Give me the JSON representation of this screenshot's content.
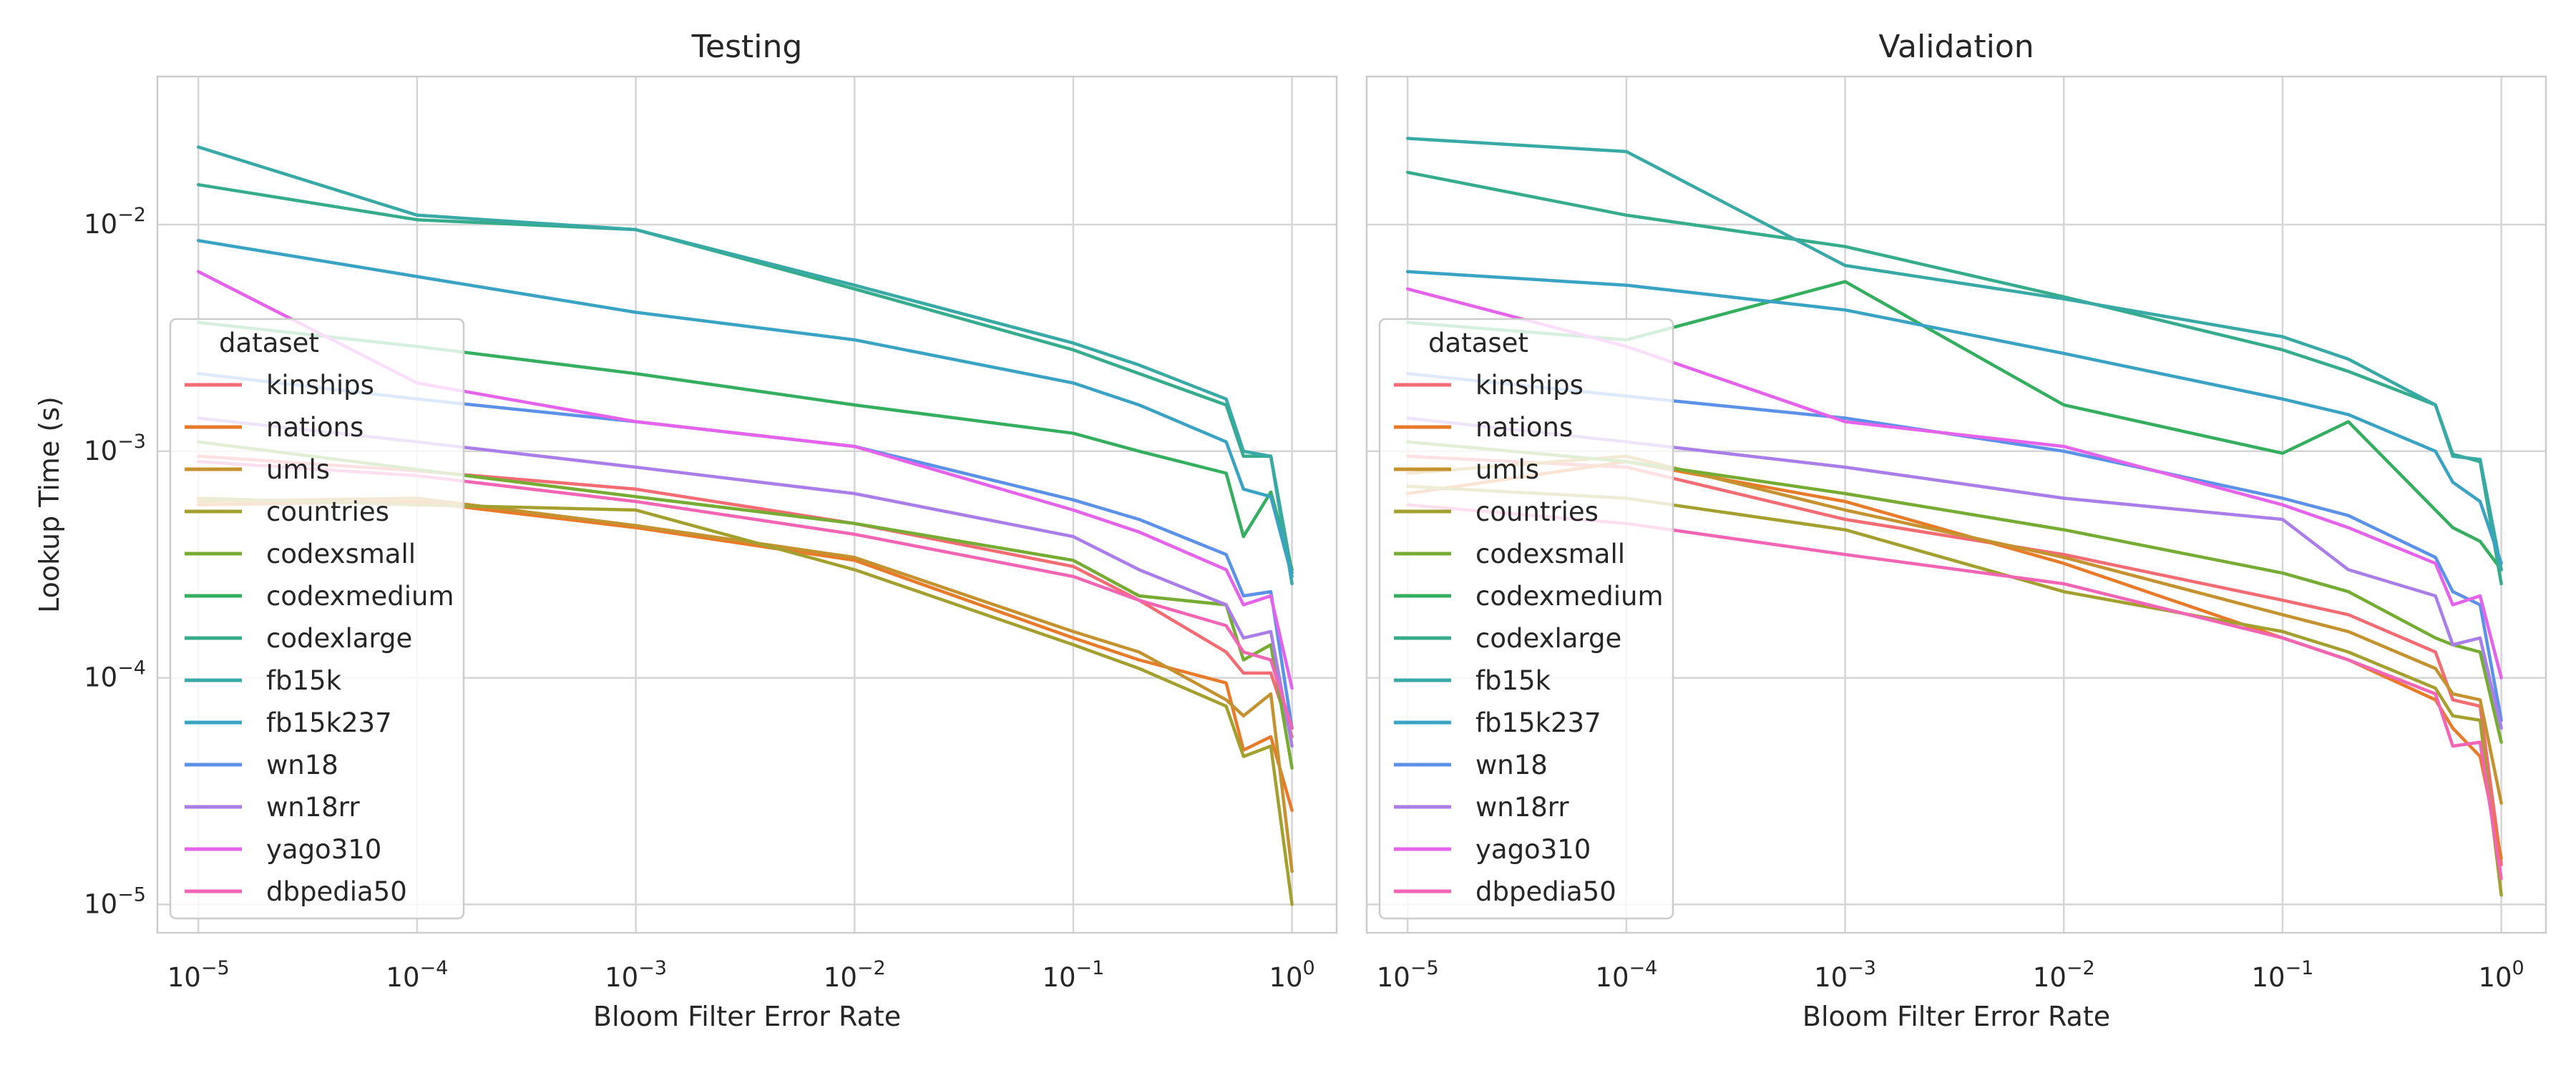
{
  "chart_data": [
    {
      "type": "line",
      "title": "Testing",
      "xlabel": "Bloom Filter Error Rate",
      "ylabel": "Lookup Time (s)",
      "xscale": "log",
      "yscale": "log",
      "xlim": [
        6.5e-06,
        1.6
      ],
      "ylim": [
        7.5e-06,
        0.045
      ],
      "x": [
        1e-05,
        0.0001,
        0.001,
        0.01,
        0.1,
        0.2,
        0.5,
        0.6,
        0.8,
        1
      ],
      "xticks": [
        1e-05,
        0.0001,
        0.001,
        0.01,
        0.1,
        1
      ],
      "xticklabels": [
        {
          "b": "10",
          "e": "−5"
        },
        {
          "b": "10",
          "e": "−4"
        },
        {
          "b": "10",
          "e": "−3"
        },
        {
          "b": "10",
          "e": "−2"
        },
        {
          "b": "10",
          "e": "−1"
        },
        {
          "b": "10",
          "e": "0"
        }
      ],
      "yticks": [
        1e-05,
        0.0001,
        0.001,
        0.01
      ],
      "yticklabels": [
        {
          "b": "10",
          "e": "−5"
        },
        {
          "b": "10",
          "e": "−4"
        },
        {
          "b": "10",
          "e": "−3"
        },
        {
          "b": "10",
          "e": "−2"
        }
      ],
      "grid": true,
      "legend": {
        "title": "dataset",
        "placement": "center-left"
      },
      "series": [
        {
          "name": "kinships",
          "color": "#f36c74",
          "values": [
            0.00095,
            0.00082,
            0.00068,
            0.00048,
            0.00031,
            0.00022,
            0.00013,
            0.000105,
            0.000105,
            5.5e-05
          ]
        },
        {
          "name": "nations",
          "color": "#e77b2a",
          "values": [
            0.00058,
            0.0006,
            0.00046,
            0.00033,
            0.00015,
            0.00012,
            9.5e-05,
            4.8e-05,
            5.5e-05,
            2.6e-05
          ]
        },
        {
          "name": "umls",
          "color": "#c4922f",
          "values": [
            0.0006,
            0.00062,
            0.00047,
            0.00034,
            0.00016,
            0.00013,
            8e-05,
            6.8e-05,
            8.5e-05,
            1.4e-05
          ]
        },
        {
          "name": "countries",
          "color": "#a3a030",
          "values": [
            0.00062,
            0.00058,
            0.00055,
            0.0003,
            0.00014,
            0.00011,
            7.5e-05,
            4.5e-05,
            5e-05,
            1e-05
          ]
        },
        {
          "name": "codexsmall",
          "color": "#76ac33",
          "values": [
            0.0011,
            0.00083,
            0.00063,
            0.00048,
            0.00033,
            0.00023,
            0.00021,
            0.00012,
            0.00014,
            4e-05
          ]
        },
        {
          "name": "codexmedium",
          "color": "#35ae60",
          "values": [
            0.0037,
            0.0029,
            0.0022,
            0.0016,
            0.0012,
            0.001,
            0.0008,
            0.00042,
            0.00066,
            0.0003
          ]
        },
        {
          "name": "codexlarge",
          "color": "#36ac8d",
          "values": [
            0.015,
            0.0105,
            0.0095,
            0.0052,
            0.0028,
            0.0022,
            0.0016,
            0.00095,
            0.00095,
            0.00029
          ]
        },
        {
          "name": "fb15k",
          "color": "#38a9a5",
          "values": [
            0.022,
            0.011,
            0.0095,
            0.0054,
            0.003,
            0.0024,
            0.0017,
            0.001,
            0.00095,
            0.00026
          ]
        },
        {
          "name": "fb15k237",
          "color": "#3aa3c4",
          "values": [
            0.0085,
            0.0059,
            0.0041,
            0.0031,
            0.002,
            0.0016,
            0.0011,
            0.00068,
            0.00063,
            0.00028
          ]
        },
        {
          "name": "wn18",
          "color": "#5b92e8",
          "values": [
            0.0022,
            0.0017,
            0.00135,
            0.00105,
            0.00061,
            0.0005,
            0.00035,
            0.00023,
            0.00024,
            6e-05
          ]
        },
        {
          "name": "wn18rr",
          "color": "#a97ee8",
          "values": [
            0.0014,
            0.0011,
            0.00085,
            0.00065,
            0.00042,
            0.0003,
            0.00021,
            0.00015,
            0.00016,
            5e-05
          ]
        },
        {
          "name": "yago310",
          "color": "#e562ea",
          "values": [
            0.0062,
            0.002,
            0.00135,
            0.00105,
            0.00055,
            0.00044,
            0.0003,
            0.00021,
            0.00023,
            9e-05
          ]
        },
        {
          "name": "dbpedia50",
          "color": "#f264b4",
          "values": [
            0.0009,
            0.00078,
            0.0006,
            0.00043,
            0.00028,
            0.00022,
            0.00017,
            0.00013,
            0.00012,
            6e-05
          ]
        }
      ]
    },
    {
      "type": "line",
      "title": "Validation",
      "xlabel": "Bloom Filter Error Rate",
      "ylabel": "",
      "xscale": "log",
      "yscale": "log",
      "xlim": [
        6.5e-06,
        1.6
      ],
      "ylim": [
        7.5e-06,
        0.045
      ],
      "x": [
        1e-05,
        0.0001,
        0.001,
        0.01,
        0.1,
        0.2,
        0.5,
        0.6,
        0.8,
        1
      ],
      "xticks": [
        1e-05,
        0.0001,
        0.001,
        0.01,
        0.1,
        1
      ],
      "xticklabels": [
        {
          "b": "10",
          "e": "−5"
        },
        {
          "b": "10",
          "e": "−4"
        },
        {
          "b": "10",
          "e": "−3"
        },
        {
          "b": "10",
          "e": "−2"
        },
        {
          "b": "10",
          "e": "−1"
        },
        {
          "b": "10",
          "e": "0"
        }
      ],
      "yticks": [
        1e-05,
        0.0001,
        0.001,
        0.01
      ],
      "yticklabels": [],
      "grid": true,
      "legend": {
        "title": "dataset",
        "placement": "center-left"
      },
      "series": [
        {
          "name": "kinships",
          "color": "#f36c74",
          "values": [
            0.00095,
            0.00085,
            0.0005,
            0.00035,
            0.00022,
            0.00019,
            0.00013,
            8e-05,
            7.5e-05,
            1.5e-05
          ]
        },
        {
          "name": "nations",
          "color": "#e77b2a",
          "values": [
            0.00065,
            0.0009,
            0.0006,
            0.00032,
            0.00015,
            0.00012,
            8e-05,
            6e-05,
            4.5e-05,
            1.6e-05
          ]
        },
        {
          "name": "umls",
          "color": "#c4922f",
          "values": [
            0.0008,
            0.00095,
            0.00055,
            0.00034,
            0.00019,
            0.00016,
            0.00011,
            8.5e-05,
            8e-05,
            2.8e-05
          ]
        },
        {
          "name": "countries",
          "color": "#a3a030",
          "values": [
            0.0007,
            0.00062,
            0.00045,
            0.00024,
            0.00016,
            0.00013,
            9e-05,
            6.8e-05,
            6.5e-05,
            1.1e-05
          ]
        },
        {
          "name": "codexsmall",
          "color": "#76ac33",
          "values": [
            0.0011,
            0.0009,
            0.00065,
            0.00045,
            0.00029,
            0.00024,
            0.00015,
            0.00014,
            0.00013,
            5.2e-05
          ]
        },
        {
          "name": "codexmedium",
          "color": "#35ae60",
          "values": [
            0.0037,
            0.0031,
            0.0056,
            0.0016,
            0.00098,
            0.00135,
            0.00055,
            0.00046,
            0.0004,
            0.0003
          ]
        },
        {
          "name": "codexlarge",
          "color": "#36ac8d",
          "values": [
            0.017,
            0.011,
            0.008,
            0.0048,
            0.0028,
            0.00225,
            0.0016,
            0.00097,
            0.0009,
            0.00026
          ]
        },
        {
          "name": "fb15k",
          "color": "#38a9a5",
          "values": [
            0.024,
            0.021,
            0.0066,
            0.0047,
            0.0032,
            0.00255,
            0.0016,
            0.00095,
            0.00092,
            0.0003
          ]
        },
        {
          "name": "fb15k237",
          "color": "#3aa3c4",
          "values": [
            0.0062,
            0.0054,
            0.0042,
            0.0027,
            0.0017,
            0.00145,
            0.001,
            0.00073,
            0.0006,
            0.00032
          ]
        },
        {
          "name": "wn18",
          "color": "#5b92e8",
          "values": [
            0.0022,
            0.00175,
            0.0014,
            0.001,
            0.00062,
            0.00052,
            0.00034,
            0.00024,
            0.00021,
            6.5e-05
          ]
        },
        {
          "name": "wn18rr",
          "color": "#a97ee8",
          "values": [
            0.0014,
            0.0011,
            0.00085,
            0.00062,
            0.0005,
            0.0003,
            0.00023,
            0.00014,
            0.00015,
            6e-05
          ]
        },
        {
          "name": "yago310",
          "color": "#e562ea",
          "values": [
            0.0052,
            0.0029,
            0.00135,
            0.00105,
            0.00058,
            0.00046,
            0.00032,
            0.00021,
            0.00023,
            0.0001
          ]
        },
        {
          "name": "dbpedia50",
          "color": "#f264b4",
          "values": [
            0.00058,
            0.00048,
            0.00035,
            0.00026,
            0.00015,
            0.00012,
            8.5e-05,
            5e-05,
            5.2e-05,
            1.3e-05
          ]
        }
      ]
    }
  ]
}
